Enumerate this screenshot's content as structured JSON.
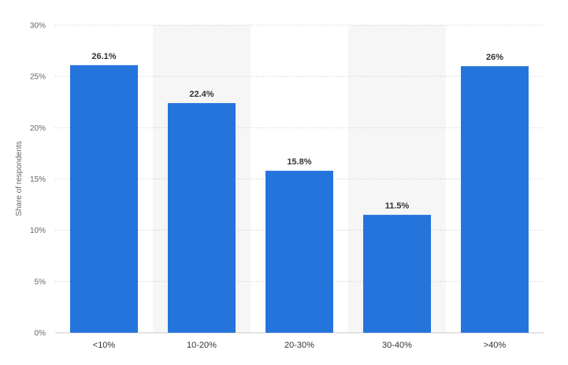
{
  "chart_data": {
    "type": "bar",
    "categories": [
      "<10%",
      "10-20%",
      "20-30%",
      "30-40%",
      ">40%"
    ],
    "values": [
      26.1,
      22.4,
      15.8,
      11.5,
      26
    ],
    "data_labels": [
      "26.1%",
      "22.4%",
      "15.8%",
      "11.5%",
      "26%"
    ],
    "title": "",
    "xlabel": "",
    "ylabel": "Share of respondents",
    "ylim": [
      0,
      30
    ],
    "yticks": [
      0,
      5,
      10,
      15,
      20,
      25,
      30
    ],
    "ytick_labels": [
      "0%",
      "5%",
      "10%",
      "15%",
      "20%",
      "25%",
      "30%"
    ],
    "grid": true,
    "legend": "none",
    "colors": {
      "bar": "#2574db",
      "grid": "#c8c8c8",
      "band": "#f6f6f6"
    }
  }
}
